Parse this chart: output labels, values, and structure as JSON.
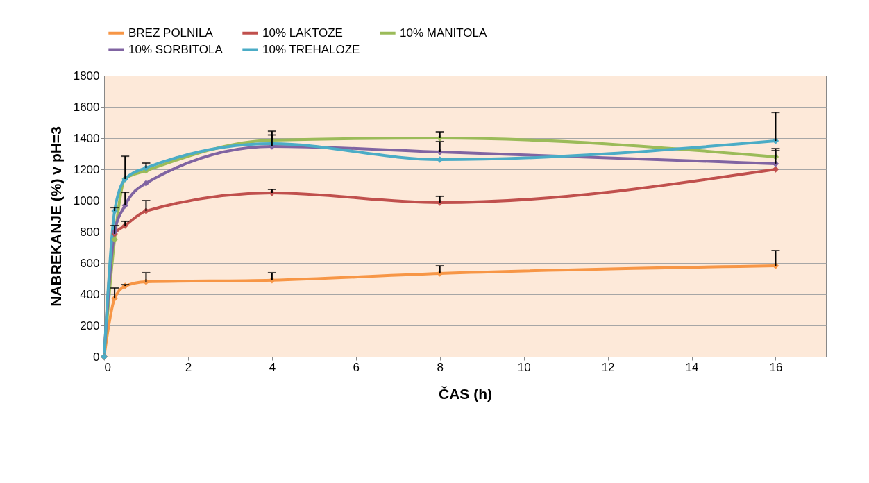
{
  "chart_data": {
    "type": "line",
    "xlabel": "ČAS (h)",
    "ylabel": "NABREKANJE (%) v pH=3",
    "x": [
      0,
      0.25,
      0.5,
      1,
      4,
      8,
      16
    ],
    "xlim": [
      0,
      17.2
    ],
    "xticks": [
      0,
      2,
      4,
      6,
      8,
      10,
      12,
      14,
      16
    ],
    "ylim": [
      0,
      1800
    ],
    "yticks": [
      0,
      200,
      400,
      600,
      800,
      1000,
      1200,
      1400,
      1600,
      1800
    ],
    "grid": "y",
    "legend": "top",
    "marker": "diamond",
    "line_style": "solid",
    "series": [
      {
        "name": "BREZ POLNILA",
        "color": "#f79646",
        "values": [
          0,
          373,
          453,
          480,
          490,
          533,
          582
        ],
        "errors": [
          null,
          [
            373,
            440
          ],
          [
            453,
            462
          ],
          [
            480,
            538
          ],
          [
            490,
            538
          ],
          [
            533,
            582
          ],
          [
            582,
            680
          ]
        ]
      },
      {
        "name": "10% LAKTOZE",
        "color": "#c0504d",
        "values": [
          0,
          787,
          840,
          933,
          1049,
          987,
          1200
        ],
        "errors": [
          null,
          [
            787,
            840
          ],
          [
            840,
            867
          ],
          [
            933,
            1000
          ],
          [
            1049,
            1071
          ],
          [
            987,
            1027
          ],
          null
        ]
      },
      {
        "name": "10% MANITOLA",
        "color": "#9bbb59",
        "values": [
          0,
          751,
          1140,
          1191,
          1387,
          1400,
          1280
        ],
        "errors": [
          null,
          null,
          null,
          null,
          [
            1387,
            1444
          ],
          [
            1400,
            1440
          ],
          [
            1280,
            1333
          ]
        ]
      },
      {
        "name": "10% SORBITOLA",
        "color": "#8064a2",
        "values": [
          0,
          800,
          969,
          1111,
          1347,
          1311,
          1236
        ],
        "errors": [
          null,
          null,
          [
            969,
            1053
          ],
          null,
          [
            1347,
            1420
          ],
          [
            1311,
            1378
          ],
          [
            1236,
            1320
          ]
        ]
      },
      {
        "name": "10% TREHALOZE",
        "color": "#4bacc6",
        "values": [
          0,
          933,
          1138,
          1209,
          1364,
          1262,
          1382
        ],
        "errors": [
          null,
          [
            933,
            955
          ],
          [
            1138,
            1284
          ],
          [
            1209,
            1240
          ],
          null,
          null,
          [
            1382,
            1564
          ]
        ]
      }
    ]
  }
}
